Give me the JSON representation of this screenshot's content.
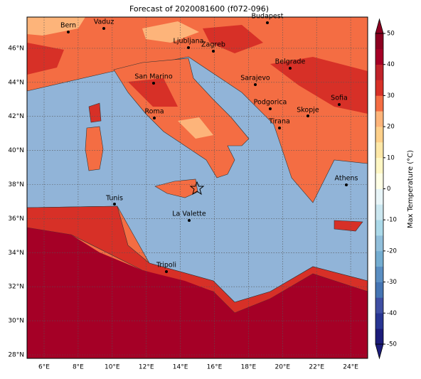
{
  "title": "Forecast of 2020081600 (f072-096)",
  "lon_ticks": [
    "6°E",
    "8°E",
    "10°E",
    "12°E",
    "14°E",
    "16°E",
    "18°E",
    "20°E",
    "22°E",
    "24°E"
  ],
  "lat_ticks": [
    "28°N",
    "30°N",
    "32°N",
    "34°N",
    "36°N",
    "38°N",
    "40°N",
    "42°N",
    "44°N",
    "46°N"
  ],
  "cities": [
    "Bern",
    "Vaduz",
    "Budapest",
    "Ljubljana",
    "Zagreb",
    "Belgrade",
    "San Marino",
    "Sarajevo",
    "Sofia",
    "Podgorica",
    "Skopje",
    "Roma",
    "Tirana",
    "Athens",
    "Tunis",
    "La Valette",
    "Tripoli"
  ],
  "colorbar": {
    "label": "Max Temperature (°C)",
    "lim": [
      -50,
      50
    ],
    "ticks": [
      -50,
      -40,
      -30,
      -20,
      -10,
      0,
      10,
      20,
      30,
      40,
      50
    ],
    "colors": [
      "#1c1c7a",
      "#283593",
      "#3f4fa3",
      "#4575b4",
      "#5a8ec2",
      "#74add1",
      "#91bfdb",
      "#abd9e9",
      "#cbe7f0",
      "#e8f5f8",
      "#ffffe5",
      "#fff7c4",
      "#fee8a8",
      "#fed08a",
      "#fdb47a",
      "#f46d43",
      "#d73027",
      "#c0222a",
      "#a50026",
      "#8c0020"
    ]
  }
}
